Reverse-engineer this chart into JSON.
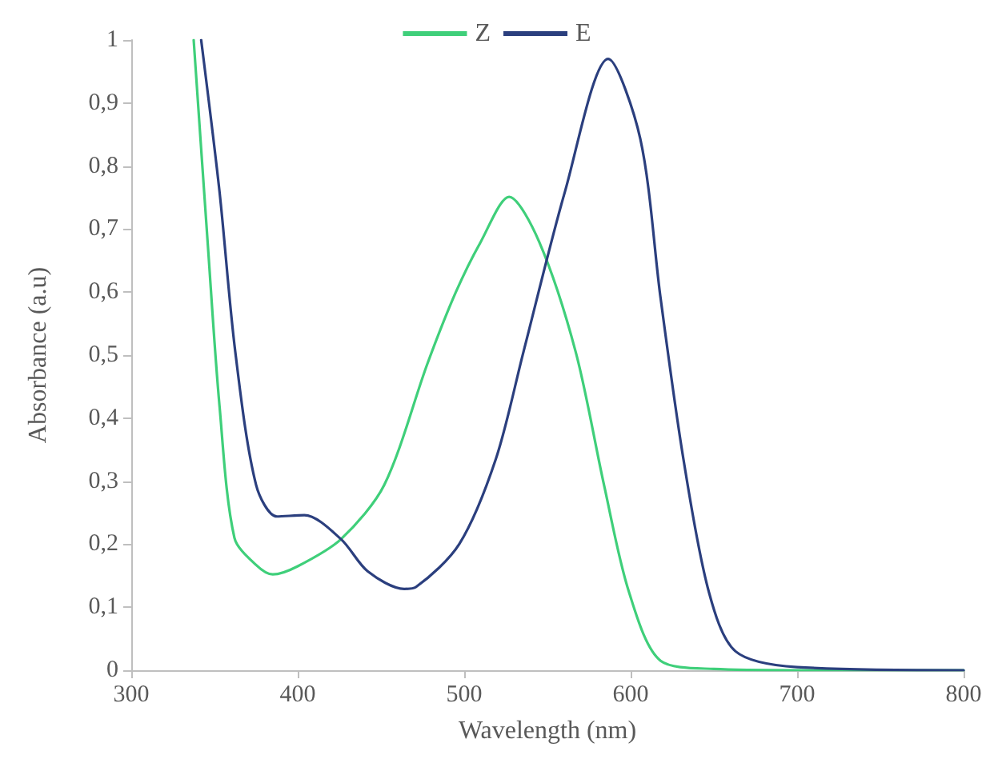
{
  "chart_data": {
    "type": "line",
    "xlabel": "Wavelength (nm)",
    "ylabel": "Absorbance (a.u)",
    "xlim": [
      300,
      800
    ],
    "xticks": [
      300,
      400,
      500,
      600,
      700,
      800
    ],
    "ylim": [
      0,
      1
    ],
    "yticks": [
      0,
      {
        "value": 0.1,
        "label": "0,1"
      },
      {
        "value": 0.2,
        "label": "0,2"
      },
      {
        "value": 0.3,
        "label": "0,3"
      },
      {
        "value": 0.4,
        "label": "0,4"
      },
      {
        "value": 0.5,
        "label": "0,5"
      },
      {
        "value": 0.6,
        "label": "0,6"
      },
      {
        "value": 0.7,
        "label": "0,7"
      },
      {
        "value": 0.8,
        "label": "0,8"
      },
      {
        "value": 0.9,
        "label": "0,9"
      },
      1
    ],
    "grid": false,
    "legend": "top",
    "marker": "none",
    "line_style": "solid",
    "series": [
      {
        "name": "Z",
        "color": "#3fcf7a",
        "x": [
          337.5,
          346,
          353,
          362,
          375,
          385,
          400,
          426,
          452,
          478,
          495,
          510,
          527,
          545,
          567,
          584,
          599,
          618,
          650,
          700,
          800
        ],
        "values": [
          1,
          0.675,
          0.42,
          0.21,
          0.167,
          0.152,
          0.165,
          0.208,
          0.294,
          0.487,
          0.6,
          0.68,
          0.751,
          0.68,
          0.505,
          0.294,
          0.124,
          0.015,
          0.002,
          0,
          0
        ]
      },
      {
        "name": "E",
        "color": "#2b3f7e",
        "x": [
          342,
          353,
          362.5,
          375,
          387.5,
          404,
          426,
          442,
          464,
          471,
          497,
          519,
          535.6,
          560.6,
          586.5,
          605.8,
          618,
          631.7,
          647,
          663,
          700,
          800
        ],
        "values": [
          1,
          0.76,
          0.505,
          0.294,
          0.244,
          0.246,
          0.208,
          0.157,
          0.129,
          0.132,
          0.2,
          0.335,
          0.505,
          0.76,
          0.97,
          0.843,
          0.59,
          0.335,
          0.124,
          0.03,
          0.005,
          0
        ]
      }
    ]
  }
}
